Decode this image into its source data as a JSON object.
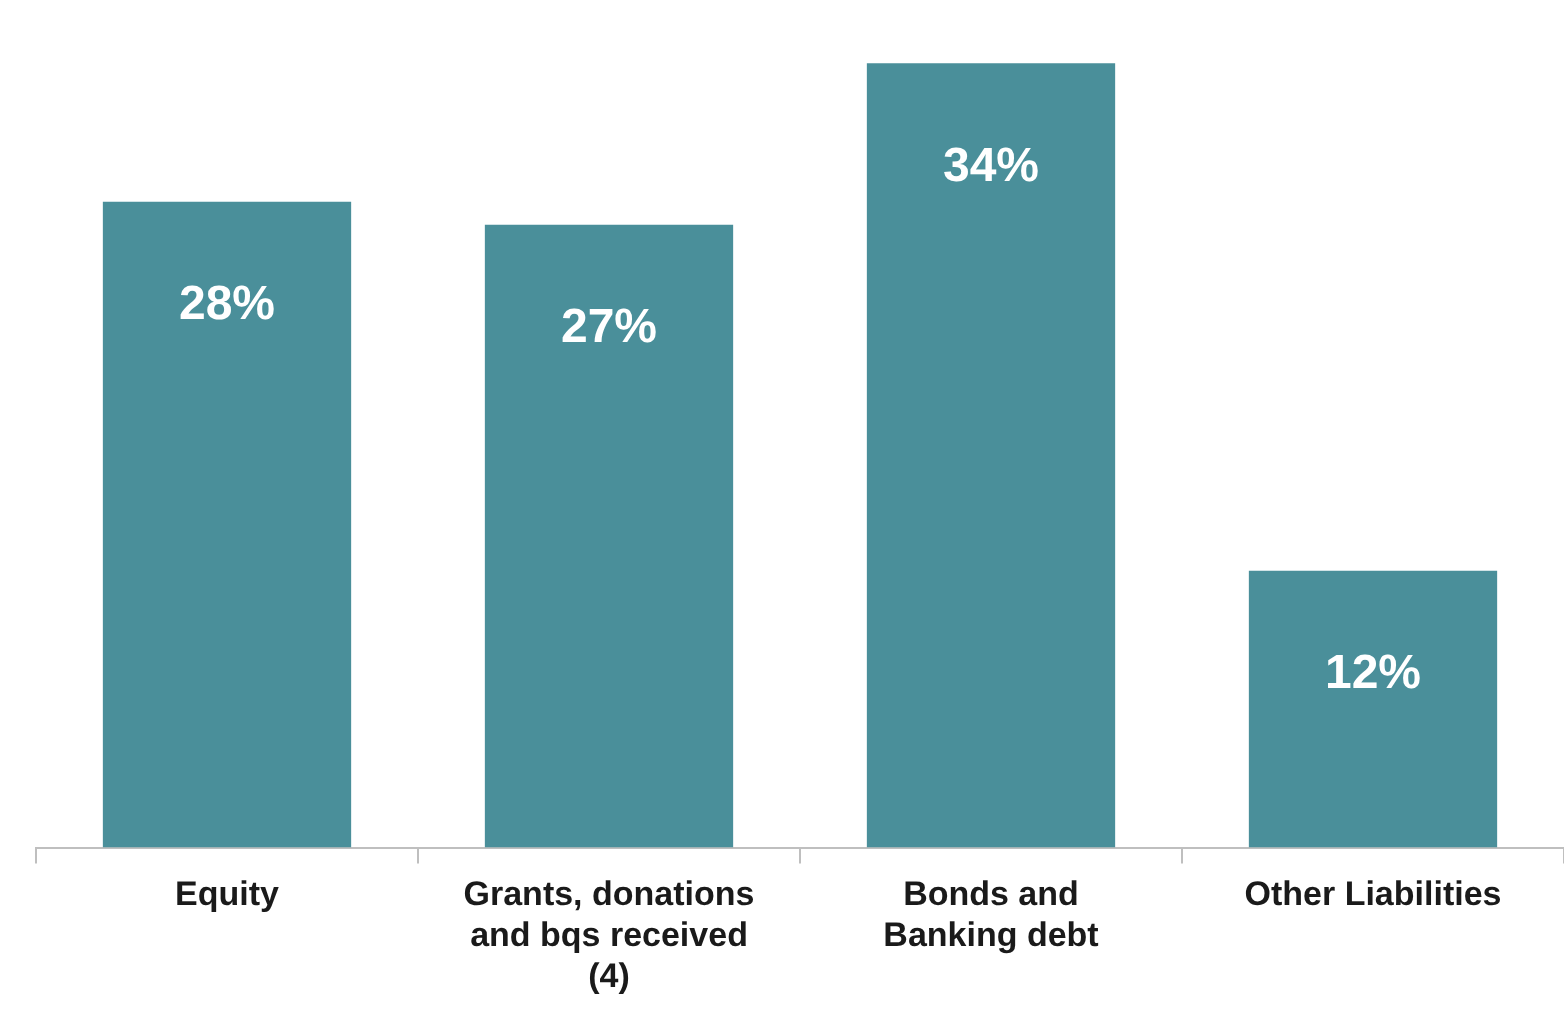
{
  "chart_data": {
    "type": "bar",
    "categories": [
      "Equity",
      "Grants, donations and bqs received (4)",
      "Bonds and Banking debt",
      "Other Liabilities"
    ],
    "values": [
      28,
      27,
      34,
      12
    ],
    "value_labels": [
      "28%",
      "27%",
      "34%",
      "12%"
    ],
    "color": "#4a8f9a"
  }
}
